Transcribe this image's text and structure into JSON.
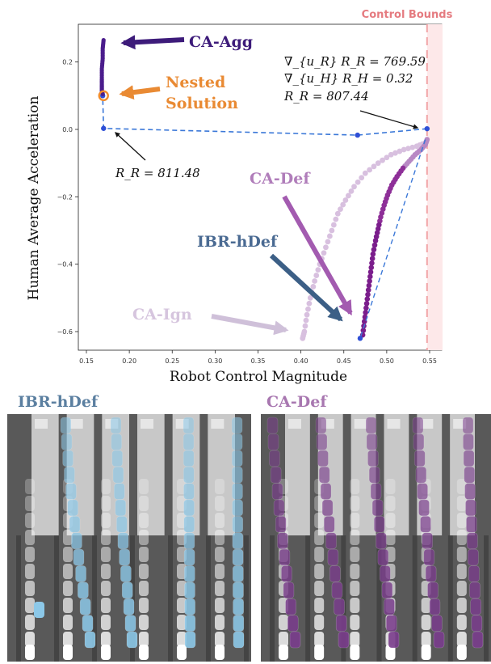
{
  "chart_data": {
    "type": "scatter",
    "xlabel": "Robot Control Magnitude",
    "ylabel": "Human Average Acceleration",
    "xlim": [
      0.14,
      0.56
    ],
    "ylim": [
      -0.66,
      0.33
    ],
    "x_ticks": [
      0.15,
      0.2,
      0.25,
      0.3,
      0.35,
      0.4,
      0.45,
      0.5,
      0.55
    ],
    "y_ticks": [
      0.2,
      0.0,
      -0.2,
      -0.4,
      -0.6
    ],
    "x_tick_labels": [
      "0.15",
      "0.20",
      "0.25",
      "0.30",
      "0.35",
      "0.40",
      "0.45",
      "0.50",
      "0.55"
    ],
    "y_tick_labels": [
      "0.2",
      "0.0",
      "−0.2",
      "−0.4",
      "−0.6"
    ],
    "control_bound": {
      "label": "Control Bounds",
      "x": 0.547,
      "color": "#f2a5a8"
    },
    "series": [
      {
        "name": "CA-Agg",
        "color": "#4b1d8c",
        "points": [
          [
            0.17,
            0.265
          ],
          [
            0.169,
            0.24
          ],
          [
            0.169,
            0.21
          ],
          [
            0.168,
            0.18
          ],
          [
            0.168,
            0.15
          ],
          [
            0.168,
            0.13
          ],
          [
            0.168,
            0.115
          ],
          [
            0.169,
            0.105
          ]
        ]
      },
      {
        "name": "Nested Solution",
        "color": "#f08c2d",
        "points": [
          [
            0.17,
            0.1
          ]
        ]
      },
      {
        "name": "CA-Def",
        "color": "#7b1e8c",
        "points": [
          [
            0.547,
            -0.03
          ],
          [
            0.545,
            -0.045
          ],
          [
            0.54,
            -0.06
          ],
          [
            0.533,
            -0.075
          ],
          [
            0.526,
            -0.095
          ],
          [
            0.519,
            -0.115
          ],
          [
            0.512,
            -0.14
          ],
          [
            0.506,
            -0.165
          ],
          [
            0.501,
            -0.195
          ],
          [
            0.497,
            -0.225
          ],
          [
            0.493,
            -0.26
          ],
          [
            0.49,
            -0.295
          ],
          [
            0.487,
            -0.33
          ],
          [
            0.484,
            -0.37
          ],
          [
            0.482,
            -0.41
          ],
          [
            0.48,
            -0.45
          ],
          [
            0.478,
            -0.49
          ],
          [
            0.476,
            -0.53
          ],
          [
            0.474,
            -0.57
          ],
          [
            0.472,
            -0.61
          ]
        ]
      },
      {
        "name": "CA-Ign",
        "color": "#d8c0df",
        "points": [
          [
            0.545,
            -0.04
          ],
          [
            0.535,
            -0.05
          ],
          [
            0.52,
            -0.06
          ],
          [
            0.505,
            -0.075
          ],
          [
            0.49,
            -0.1
          ],
          [
            0.475,
            -0.13
          ],
          [
            0.462,
            -0.17
          ],
          [
            0.452,
            -0.21
          ],
          [
            0.443,
            -0.25
          ],
          [
            0.436,
            -0.3
          ],
          [
            0.429,
            -0.35
          ],
          [
            0.422,
            -0.4
          ],
          [
            0.416,
            -0.45
          ],
          [
            0.411,
            -0.5
          ],
          [
            0.407,
            -0.55
          ],
          [
            0.404,
            -0.6
          ],
          [
            0.402,
            -0.62
          ]
        ]
      },
      {
        "name": "IBR-hDef",
        "color": "#2e4fd6",
        "dashed_color": "#3b78d8",
        "points": [
          [
            0.547,
            0.002
          ],
          [
            0.466,
            -0.017
          ],
          [
            0.17,
            0.003
          ],
          [
            0.169,
            0.1
          ]
        ],
        "second_path": [
          [
            0.545,
            -0.03
          ],
          [
            0.469,
            -0.62
          ]
        ]
      }
    ],
    "annotations": {
      "ca_agg": "CA-Agg",
      "nested_line1": "Nested",
      "nested_line2": "Solution",
      "ca_def": "CA-Def",
      "ibr_hdef": "IBR-hDef",
      "ca_ign": "CA-Ign",
      "left_value": "R_R = 811.48",
      "right_line1": "∇_{u_R} R_R = 769.59",
      "right_line2": "∇_{u_H} R_H = 0.32",
      "right_line3": "R_R = 807.44"
    }
  },
  "panels": {
    "left_title": "IBR-hDef",
    "right_title": "CA-Def",
    "left_color": "#8cc8e8",
    "right_color": "#7a3d8c",
    "left_title_color": "#5b7fa0",
    "right_title_color": "#a877b0"
  }
}
